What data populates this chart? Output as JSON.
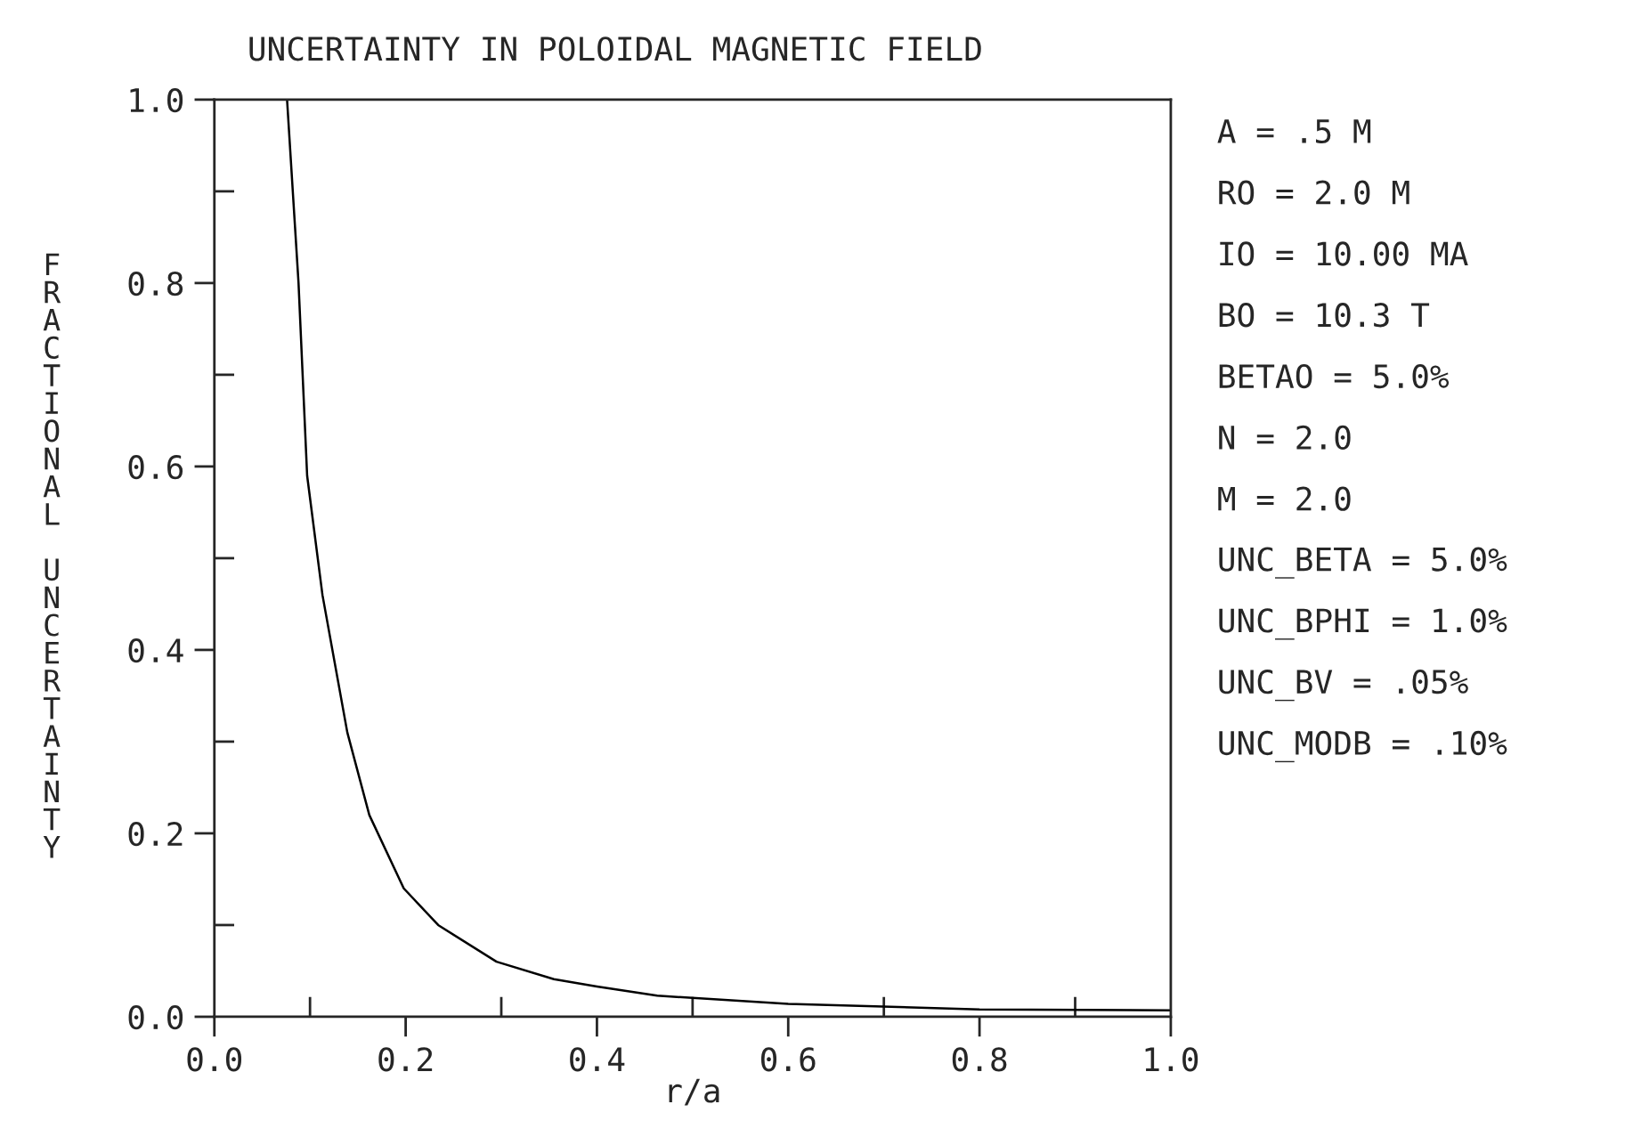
{
  "chart_data": {
    "type": "line",
    "title": "UNCERTAINTY IN POLOIDAL MAGNETIC FIELD",
    "xlabel": "r/a",
    "ylabel": "FRACTIONAL UNCERTAINTY",
    "x": [
      0.076,
      0.088,
      0.097,
      0.113,
      0.139,
      0.162,
      0.198,
      0.234,
      0.295,
      0.355,
      0.4,
      0.463,
      0.6,
      0.8,
      1.0
    ],
    "series": [
      {
        "color": "#000000",
        "values": [
          1.0,
          0.8,
          0.59,
          0.46,
          0.31,
          0.22,
          0.14,
          0.1,
          0.06,
          0.041,
          0.033,
          0.023,
          0.014,
          0.008,
          0.007
        ]
      }
    ],
    "xlim": [
      0.0,
      1.0
    ],
    "ylim": [
      0.0,
      1.0
    ],
    "xticks": [
      {
        "value": 0.0,
        "label": "0.0"
      },
      0.2,
      0.4,
      0.6,
      0.8,
      {
        "value": 1.0,
        "label": "1.0"
      }
    ],
    "yticks": [
      {
        "value": 0.0,
        "label": "0.0"
      },
      0.2,
      0.4,
      0.6,
      0.8,
      {
        "value": 1.0,
        "label": "1.0"
      }
    ],
    "grid": false,
    "marker": "none",
    "line_style": "solid",
    "annotations": [
      "A = .5 M",
      "RO = 2.0 M",
      "IO = 10.00 MA",
      "BO = 10.3 T",
      "BETAO = 5.0%",
      "N = 2.0",
      "M = 2.0",
      "UNC_BETA = 5.0%",
      "UNC_BPHI = 1.0%",
      "UNC_BV = .05%",
      "UNC_MODB = .10%"
    ]
  }
}
